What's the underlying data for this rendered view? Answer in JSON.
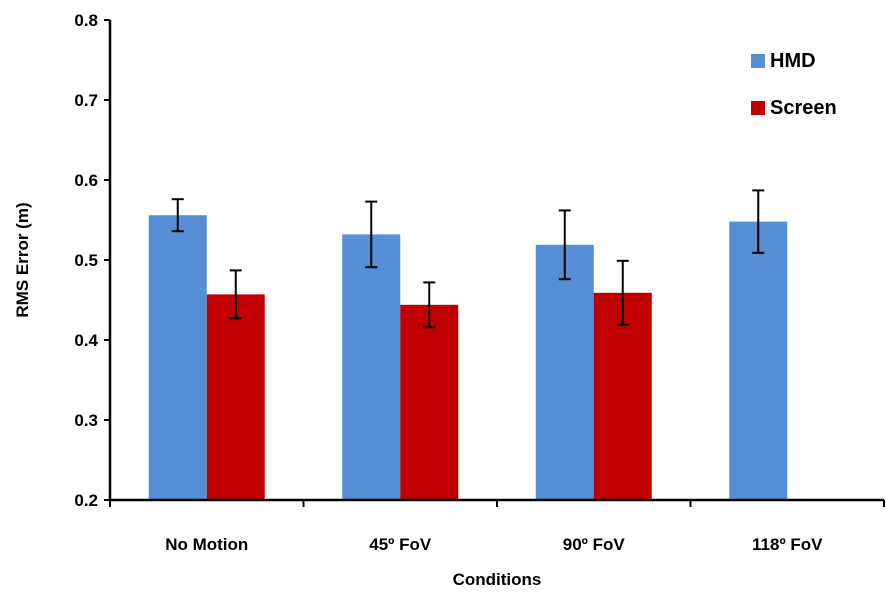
{
  "chart_data": {
    "type": "bar",
    "title": "",
    "xlabel": "Conditions",
    "ylabel": "RMS Error (m)",
    "ylim": [
      0.2,
      0.8
    ],
    "yticks": [
      "0.2",
      "0.3",
      "0.4",
      "0.5",
      "0.6",
      "0.7",
      "0.8"
    ],
    "categories": [
      "No Motion",
      "45º FoV",
      "90º FoV",
      "118º FoV"
    ],
    "series": [
      {
        "name": "HMD",
        "color": "#558ED5",
        "values": [
          0.556,
          0.532,
          0.519,
          0.548
        ],
        "error": [
          0.02,
          0.041,
          0.043,
          0.039
        ]
      },
      {
        "name": "Screen",
        "color": "#C00000",
        "values": [
          0.457,
          0.444,
          0.459,
          null
        ],
        "error": [
          0.03,
          0.028,
          0.04,
          null
        ]
      }
    ],
    "grid": false,
    "legend_position": "top-right"
  }
}
